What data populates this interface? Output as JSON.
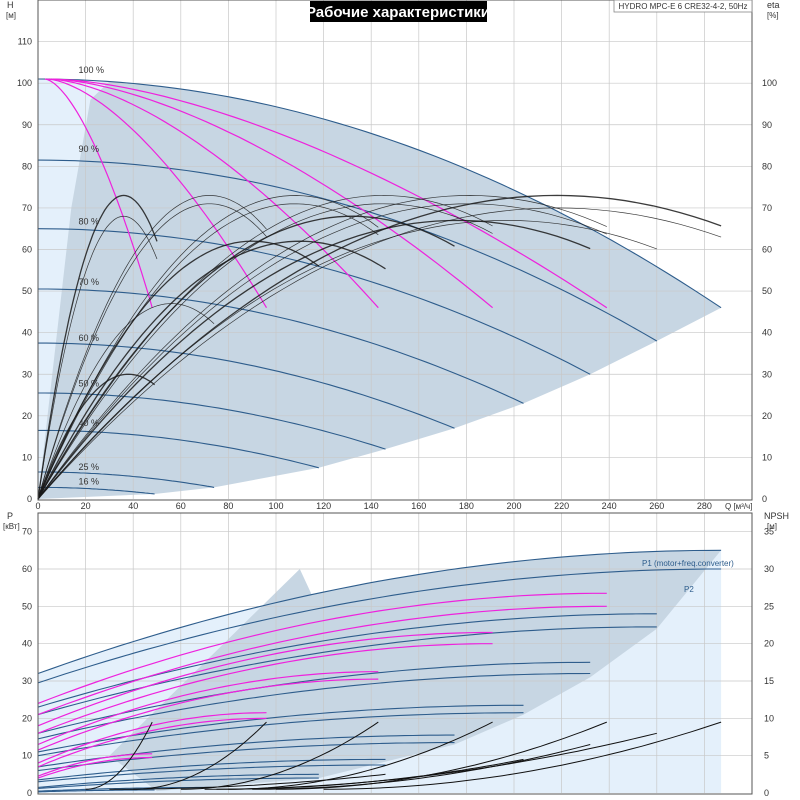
{
  "title": "Рабочие характеристики",
  "model": "HYDRO MPC-E 6 CRE32-4-2, 50Hz",
  "colors": {
    "region_light": "#e4f0fb",
    "region_dark": "#c7d6e3",
    "pump_curve": "#2e5d8c",
    "power_curve": "#2e5d8c",
    "system_curve": "#ee22dd",
    "efficiency_curve": "#1a1a1a",
    "npsh_curve": "#111111"
  },
  "chart_data": [
    {
      "type": "line",
      "name": "head",
      "y_label": "H",
      "y_unit": "[м]",
      "y2_label": "eta",
      "y2_unit": "[%]",
      "xlim": [
        0,
        300
      ],
      "ylim": [
        0,
        120
      ],
      "x_ticks": [
        0,
        20,
        40,
        60,
        80,
        100,
        120,
        140,
        160,
        180,
        200,
        220,
        240,
        260,
        280
      ],
      "y_ticks": [
        0,
        10,
        20,
        30,
        40,
        50,
        60,
        70,
        80,
        90,
        100,
        110
      ],
      "y2_ticks": [
        0,
        10,
        20,
        30,
        40,
        50,
        60,
        70,
        80,
        90,
        100
      ],
      "speed_labels": [
        {
          "text": "100 %",
          "q": 17,
          "h": 102.5
        },
        {
          "text": "90 %",
          "q": 17,
          "h": 83.5
        },
        {
          "text": "80 %",
          "q": 17,
          "h": 66
        },
        {
          "text": "70 %",
          "q": 17,
          "h": 51.5
        },
        {
          "text": "60 %",
          "q": 17,
          "h": 38
        },
        {
          "text": "50 %",
          "q": 17,
          "h": 27
        },
        {
          "text": "40 %",
          "q": 17,
          "h": 17.5
        },
        {
          "text": "25 %",
          "q": 17,
          "h": 7
        },
        {
          "text": "16 %",
          "q": 17,
          "h": 3.5
        }
      ],
      "pump_curves": [
        {
          "speed": "100 %",
          "h0": 101,
          "qmax": 287,
          "hend": 46
        },
        {
          "speed": "90 %",
          "h0": 81.5,
          "qmax": 260,
          "hend": 38
        },
        {
          "speed": "80 %",
          "h0": 65,
          "qmax": 232,
          "hend": 30
        },
        {
          "speed": "70 %",
          "h0": 50.5,
          "qmax": 204,
          "hend": 23
        },
        {
          "speed": "60 %",
          "h0": 37.5,
          "qmax": 175,
          "hend": 17
        },
        {
          "speed": "50 %",
          "h0": 25.5,
          "qmax": 146,
          "hend": 12
        },
        {
          "speed": "40 %",
          "h0": 16.5,
          "qmax": 118,
          "hend": 7.5
        },
        {
          "speed": "25 %",
          "h0": 6.5,
          "qmax": 74,
          "hend": 2.8
        },
        {
          "speed": "16 %",
          "h0": 2.8,
          "qmax": 49,
          "hend": 1.2
        }
      ],
      "system_curves": [
        {
          "q_end": 48,
          "h_end": 46
        },
        {
          "q_end": 96,
          "h_end": 46
        },
        {
          "q_end": 143,
          "h_end": 46
        },
        {
          "q_end": 191,
          "h_end": 46
        },
        {
          "q_end": 239,
          "h_end": 46
        }
      ],
      "efficiency_curves": [
        {
          "q_peak": 36,
          "eta_peak": 73,
          "q_end": 50
        },
        {
          "q_peak": 36,
          "eta_peak": 68,
          "q_end": 50
        },
        {
          "q_peak": 56,
          "eta_peak": 47,
          "q_end": 74
        },
        {
          "q_peak": 38,
          "eta_peak": 30,
          "q_end": 49
        },
        {
          "q_peak": 72,
          "eta_peak": 73,
          "q_end": 96
        },
        {
          "q_peak": 72,
          "eta_peak": 71,
          "q_end": 96
        },
        {
          "q_peak": 90,
          "eta_peak": 62,
          "q_end": 118
        },
        {
          "q_peak": 108,
          "eta_peak": 73,
          "q_end": 143
        },
        {
          "q_peak": 108,
          "eta_peak": 71,
          "q_end": 143
        },
        {
          "q_peak": 110,
          "eta_peak": 62,
          "q_end": 146
        },
        {
          "q_peak": 145,
          "eta_peak": 73,
          "q_end": 191
        },
        {
          "q_peak": 145,
          "eta_peak": 71,
          "q_end": 191
        },
        {
          "q_peak": 132,
          "eta_peak": 68,
          "q_end": 175
        },
        {
          "q_peak": 181,
          "eta_peak": 73,
          "q_end": 239
        },
        {
          "q_peak": 181,
          "eta_peak": 71,
          "q_end": 239
        },
        {
          "q_peak": 218,
          "eta_peak": 73,
          "q_end": 287
        },
        {
          "q_peak": 218,
          "eta_peak": 70,
          "q_end": 287
        },
        {
          "q_peak": 197,
          "eta_peak": 67,
          "q_end": 260
        },
        {
          "q_peak": 176,
          "eta_peak": 67,
          "q_end": 232
        }
      ]
    },
    {
      "type": "line",
      "name": "power",
      "y_label": "P",
      "y_unit": "[кВт]",
      "y2_label": "NPSH",
      "y2_unit": "[м]",
      "x_label": "Q [м³/ч]",
      "xlim": [
        0,
        300
      ],
      "ylim": [
        0,
        75
      ],
      "y_ticks": [
        0,
        10,
        20,
        30,
        40,
        50,
        60,
        70
      ],
      "y2_ticks": [
        0,
        5,
        10,
        15,
        20,
        25,
        30,
        35
      ],
      "series_labels": [
        "P1 (motor+freq.converter)",
        "P2"
      ],
      "power_curves": [
        {
          "p0": 32,
          "qmax": 287,
          "pend": 65
        },
        {
          "p0": 29.5,
          "qmax": 287,
          "pend": 60
        },
        {
          "p0": 23,
          "qmax": 260,
          "pend": 48
        },
        {
          "p0": 21,
          "qmax": 260,
          "pend": 44.5
        },
        {
          "p0": 16,
          "qmax": 232,
          "pend": 35
        },
        {
          "p0": 14.5,
          "qmax": 232,
          "pend": 32
        },
        {
          "p0": 11,
          "qmax": 204,
          "pend": 23.5
        },
        {
          "p0": 10,
          "qmax": 204,
          "pend": 21.5
        },
        {
          "p0": 7,
          "qmax": 175,
          "pend": 15.5
        },
        {
          "p0": 6,
          "qmax": 175,
          "pend": 13.5
        },
        {
          "p0": 3.5,
          "qmax": 146,
          "pend": 9
        },
        {
          "p0": 3,
          "qmax": 146,
          "pend": 7.5
        },
        {
          "p0": 1.5,
          "qmax": 118,
          "pend": 5
        },
        {
          "p0": 1.2,
          "qmax": 118,
          "pend": 4
        },
        {
          "p0": 0.5,
          "qmax": 74,
          "pend": 1.5
        },
        {
          "p0": 0.3,
          "qmax": 49,
          "pend": 0.8
        }
      ],
      "system_power_curves": [
        {
          "p0": 24,
          "q_end": 239,
          "p_end": 53.5
        },
        {
          "p0": 21,
          "q_end": 239,
          "p_end": 50
        },
        {
          "p0": 18,
          "q_end": 191,
          "p_end": 43
        },
        {
          "p0": 16,
          "q_end": 191,
          "p_end": 40
        },
        {
          "p0": 13,
          "q_end": 143,
          "p_end": 32.5
        },
        {
          "p0": 11.5,
          "q_end": 143,
          "p_end": 30.5
        },
        {
          "p0": 8,
          "q_end": 96,
          "p_end": 21.5
        },
        {
          "p0": 7,
          "q_end": 96,
          "p_end": 20
        },
        {
          "p0": 4.5,
          "q_end": 48,
          "p_end": 10.5
        },
        {
          "p0": 4,
          "q_end": 48,
          "p_end": 9.5
        }
      ],
      "npsh_curves": [
        {
          "q_start": 20,
          "q_end": 48,
          "npsh_end": 9.5
        },
        {
          "q_start": 40,
          "q_end": 96,
          "npsh_end": 9.5
        },
        {
          "q_start": 60,
          "q_end": 143,
          "npsh_end": 9.5
        },
        {
          "q_start": 80,
          "q_end": 191,
          "npsh_end": 9.5
        },
        {
          "q_start": 100,
          "q_end": 239,
          "npsh_end": 9.5
        },
        {
          "q_start": 120,
          "q_end": 287,
          "npsh_end": 9.5
        },
        {
          "q_start": 90,
          "q_end": 232,
          "npsh_end": 6.5
        },
        {
          "q_start": 70,
          "q_end": 260,
          "npsh_end": 8
        },
        {
          "q_start": 75,
          "q_end": 204,
          "npsh_end": 4.5
        },
        {
          "q_start": 30,
          "q_end": 146,
          "npsh_end": 2.5
        }
      ]
    }
  ]
}
